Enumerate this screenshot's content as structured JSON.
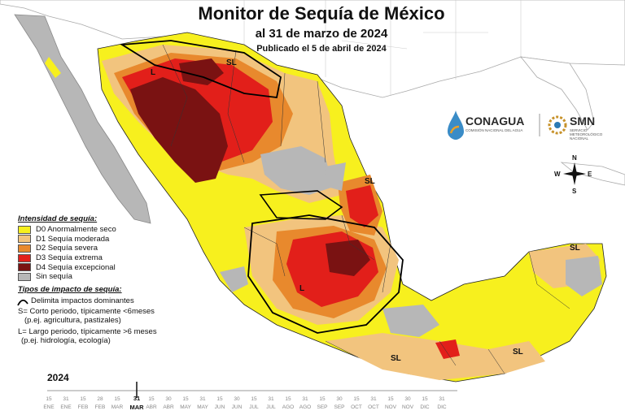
{
  "header": {
    "title": "Monitor de Sequía de México",
    "subtitle": "al 31 de marzo de 2024",
    "published": "Publicado el 5 de abril de 2024"
  },
  "legend": {
    "intensity_heading": "Intensidad de sequía:",
    "items": [
      {
        "label": "D0 Anormalmente seco",
        "color": "#f7f01e"
      },
      {
        "label": "D1 Sequía moderada",
        "color": "#f2c47e"
      },
      {
        "label": "D2 Sequía severa",
        "color": "#e8892d"
      },
      {
        "label": "D3 Sequía extrema",
        "color": "#e21f1a"
      },
      {
        "label": "D4 Sequía excepcional",
        "color": "#7a1212"
      },
      {
        "label": "Sin sequía",
        "color": "#b7b7b7"
      }
    ],
    "impact_heading": "Tipos de impacto de sequía:",
    "impact_line": "Delimita impactos dominantes",
    "short_line1": "S= Corto periodo, típicamente <6meses",
    "short_line2": "(p.ej. agricultura, pastizales)",
    "long_line1": "L= Largo periodo, típicamente >6 meses",
    "long_line2": "(p.ej. hidrología, ecología)"
  },
  "logos": {
    "conagua": "CONAGUA",
    "conagua_sub": "COMISIÓN NACIONAL DEL AGUA",
    "smn": "SMN",
    "smn_sub": "SERVICIO METEOROLÓGICO NACIONAL"
  },
  "compass": {
    "n": "N",
    "s": "S",
    "e": "E",
    "w": "W"
  },
  "map_labels": {
    "sl_north": "SL",
    "l_west": "L",
    "sl_gulf": "SL",
    "sl_yucatan": "SL",
    "sl_south": "SL",
    "sl_chiapas": "SL",
    "l_center": "L"
  },
  "timeline": {
    "year": "2024",
    "current_day": "31",
    "current_month": "MAR",
    "days": [
      "15",
      "31",
      "15",
      "28",
      "15",
      "31",
      "15",
      "30",
      "15",
      "31",
      "15",
      "30",
      "15",
      "31",
      "15",
      "31",
      "15",
      "30",
      "15",
      "31",
      "15",
      "30",
      "15",
      "31"
    ],
    "months": [
      "ENE",
      "ENE",
      "FEB",
      "FEB",
      "MAR",
      "MAR",
      "ABR",
      "ABR",
      "MAY",
      "MAY",
      "JUN",
      "JUN",
      "JUL",
      "JUL",
      "AGO",
      "AGO",
      "SEP",
      "SEP",
      "OCT",
      "OCT",
      "NOV",
      "NOV",
      "DIC",
      "DIC"
    ]
  }
}
